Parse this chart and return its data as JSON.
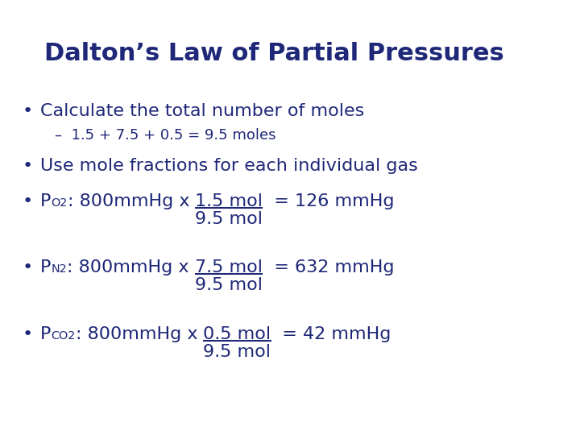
{
  "title": "Dalton’s Law of Partial Pressures",
  "title_color": "#1f2878",
  "title_fontsize": 22,
  "background_color": "#ffffff",
  "text_color": "#1f2878",
  "body_fontsize": 16,
  "sub_fontsize": 13,
  "fraction_items": [
    {
      "subscript": "O2",
      "after_sub": ": 800mmHg x ",
      "numerator": "1.5 mol",
      "denominator": "9.5 mol",
      "result": "  = 126 mmHg"
    },
    {
      "subscript": "N2",
      "after_sub": ": 800mmHg x ",
      "numerator": "7.5 mol",
      "denominator": "9.5 mol",
      "result": "  = 632 mmHg"
    },
    {
      "subscript": "CO2",
      "after_sub": ": 800mmHg x ",
      "numerator": "0.5 mol",
      "denominator": "9.5 mol",
      "result": "  = 42 mmHg"
    }
  ]
}
